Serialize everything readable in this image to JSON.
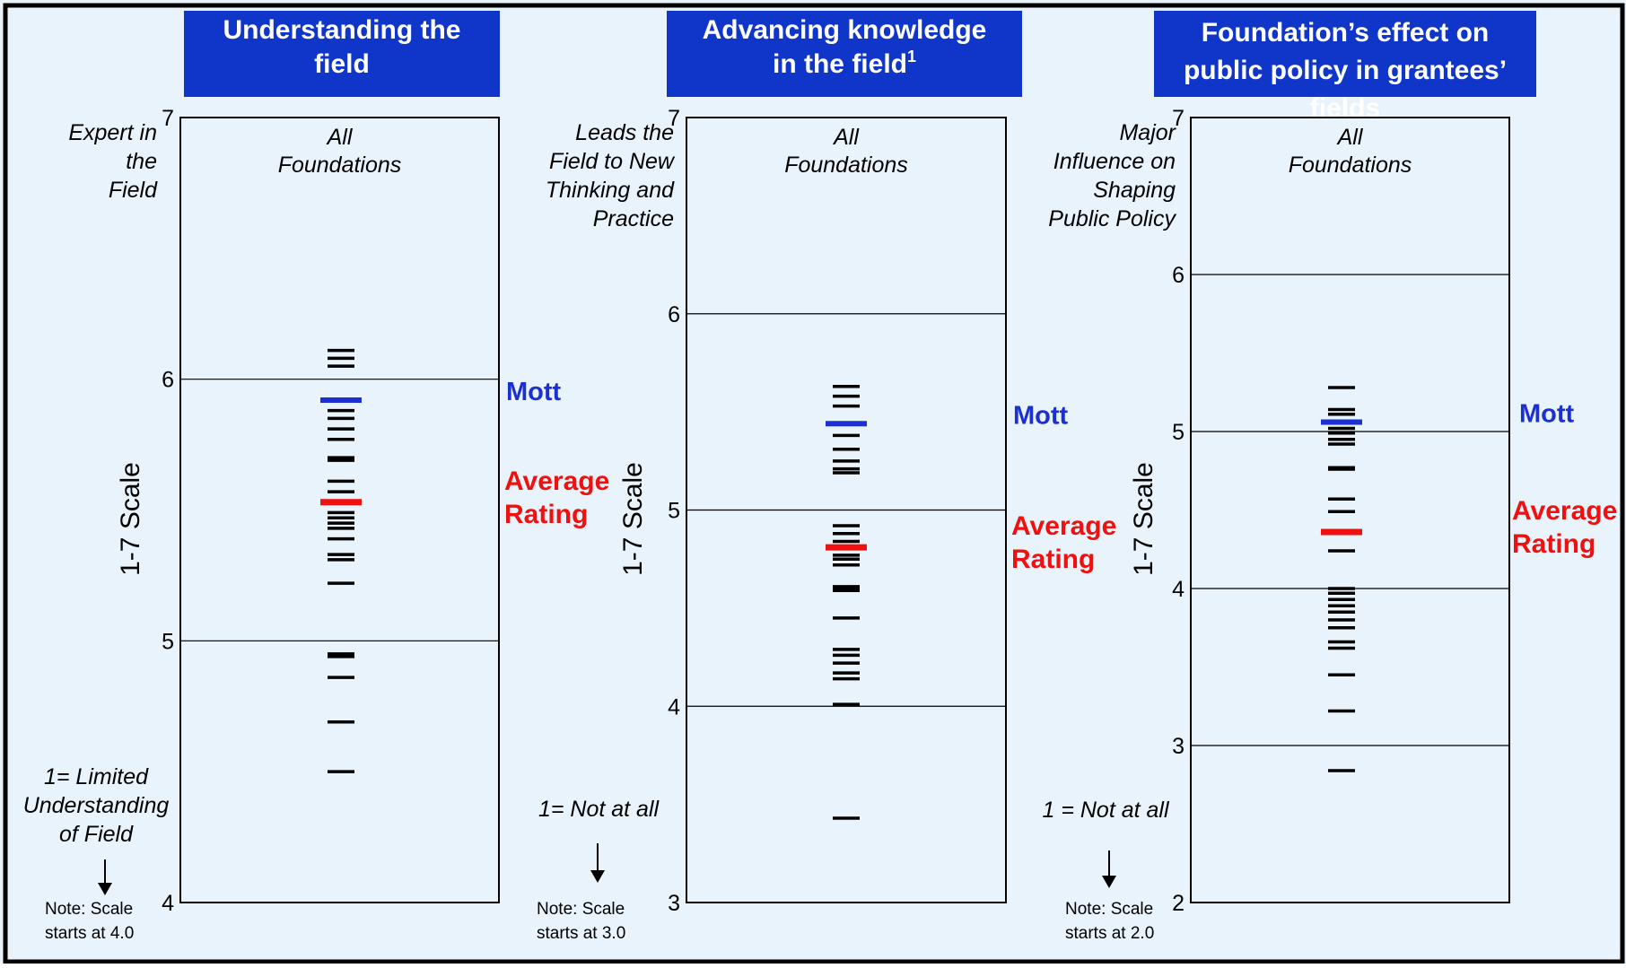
{
  "panels": [
    {
      "title_lines": [
        "Understanding the",
        "field"
      ],
      "title_sup": "",
      "plot_label_lines": [
        "All",
        "Foundations"
      ],
      "top_anchor_lines": [
        "Expert in",
        "the",
        "Field"
      ],
      "bottom_anchor_lines": [
        "1= Limited",
        "Understanding",
        "of Field"
      ],
      "scale_label": "1-7 Scale",
      "note_lines": [
        "Note: Scale",
        "starts at 4.0"
      ],
      "mott_label": "Mott",
      "average_label_lines": [
        "Average",
        "Rating"
      ]
    },
    {
      "title_lines": [
        "Advancing knowledge",
        "in the field"
      ],
      "title_sup": "1",
      "plot_label_lines": [
        "All",
        "Foundations"
      ],
      "top_anchor_lines": [
        "Leads the",
        "Field to New",
        "Thinking and",
        "Practice"
      ],
      "bottom_anchor_lines": [
        "1= Not at all"
      ],
      "scale_label": "1-7 Scale",
      "note_lines": [
        "Note: Scale",
        "starts at 3.0"
      ],
      "mott_label": "Mott",
      "average_label_lines": [
        "Average",
        "Rating"
      ]
    },
    {
      "title_lines": [
        "Foundation’s effect on",
        "public policy in grantees’",
        "fields"
      ],
      "title_sup": "",
      "plot_label_lines": [
        "All",
        "Foundations"
      ],
      "top_anchor_lines": [
        "Major",
        "Influence on",
        "Shaping",
        "Public Policy"
      ],
      "bottom_anchor_lines": [
        "1 = Not at all"
      ],
      "scale_label": "1-7 Scale",
      "note_lines": [
        "Note: Scale",
        "starts at 2.0"
      ],
      "mott_label": "Mott",
      "average_label_lines": [
        "Average",
        "Rating"
      ]
    }
  ],
  "colors": {
    "background": "#e9f3fb",
    "title_bar": "#0f36c9",
    "mott": "#1c2fd0",
    "average": "#f01010",
    "foundation_mark": "#000000",
    "arrow": "#000000"
  },
  "icons": {
    "note_arrow": "down-arrow-icon"
  },
  "chart_data": [
    {
      "type": "strip",
      "ylim": [
        4,
        7
      ],
      "yticks": [
        4,
        5,
        6,
        7
      ],
      "gridlines": [
        5,
        6
      ],
      "mott": 5.92,
      "average": 5.53,
      "foundations": [
        6.11,
        6.08,
        6.05,
        5.88,
        5.85,
        5.81,
        5.77,
        5.7,
        5.69,
        5.61,
        5.57,
        5.49,
        5.47,
        5.45,
        5.43,
        5.39,
        5.33,
        5.31,
        5.22,
        4.95,
        4.94,
        4.86,
        4.69,
        4.5
      ]
    },
    {
      "type": "strip",
      "ylim": [
        3,
        7
      ],
      "yticks": [
        3,
        4,
        5,
        6,
        7
      ],
      "gridlines": [
        4,
        5,
        6
      ],
      "mott": 5.44,
      "average": 4.81,
      "foundations": [
        5.63,
        5.58,
        5.53,
        5.38,
        5.31,
        5.25,
        5.21,
        5.19,
        4.92,
        4.88,
        4.84,
        4.77,
        4.75,
        4.72,
        4.61,
        4.6,
        4.59,
        4.45,
        4.29,
        4.26,
        4.22,
        4.17,
        4.14,
        4.01,
        3.43
      ]
    },
    {
      "type": "strip",
      "ylim": [
        2,
        7
      ],
      "yticks": [
        2,
        3,
        4,
        5,
        6,
        7
      ],
      "gridlines": [
        3,
        4,
        5,
        6
      ],
      "mott": 5.06,
      "average": 4.36,
      "foundations": [
        5.28,
        5.14,
        5.11,
        5.02,
        4.99,
        4.95,
        4.92,
        4.77,
        4.76,
        4.57,
        4.49,
        4.24,
        4.0,
        3.97,
        3.93,
        3.89,
        3.85,
        3.8,
        3.75,
        3.66,
        3.62,
        3.45,
        3.22,
        2.84
      ]
    }
  ]
}
